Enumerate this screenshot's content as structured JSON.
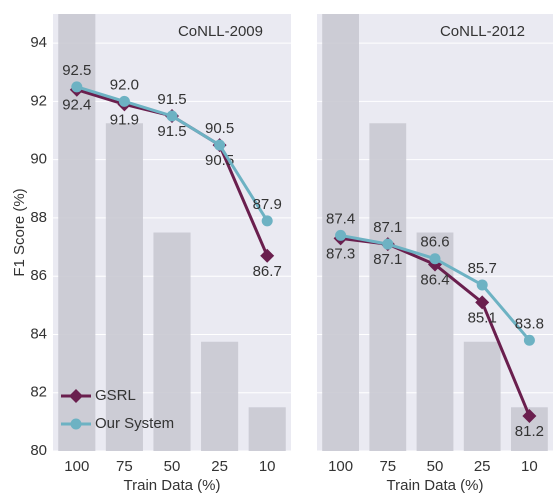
{
  "chart_data": [
    {
      "type": "line",
      "title": "CoNLL-2009",
      "xlabel": "Train Data (%)",
      "ylabel": "F1 Score (%)",
      "categories": [
        "100",
        "75",
        "50",
        "25",
        "10"
      ],
      "bars": {
        "color": "#c9c9d1",
        "values": [
          95,
          91.25,
          87.5,
          83.75,
          81.5
        ]
      },
      "series": [
        {
          "name": "GSRL",
          "color": "#6a1f4e",
          "marker": "diamond",
          "values": [
            92.4,
            91.9,
            91.5,
            90.5,
            86.7
          ],
          "value_labels": [
            "92.4",
            "91.9",
            "91.5",
            "90.5",
            "86.7"
          ]
        },
        {
          "name": "Our System",
          "color": "#6db2c3",
          "marker": "circle",
          "values": [
            92.5,
            92.0,
            91.5,
            90.5,
            87.9
          ],
          "value_labels": [
            "92.5",
            "92.0",
            "91.5",
            "90.5",
            "87.9"
          ]
        }
      ],
      "ylim": [
        80,
        95
      ],
      "yticks": [
        80,
        82,
        84,
        86,
        88,
        90,
        92,
        94
      ],
      "show_ytick_labels": true,
      "grid": true,
      "legend": "lower left"
    },
    {
      "type": "line",
      "title": "CoNLL-2012",
      "xlabel": "Train Data (%)",
      "categories": [
        "100",
        "75",
        "50",
        "25",
        "10"
      ],
      "bars": {
        "color": "#c9c9d1",
        "values": [
          95,
          91.25,
          87.5,
          83.75,
          81.5
        ]
      },
      "series": [
        {
          "name": "GSRL",
          "color": "#6a1f4e",
          "marker": "diamond",
          "values": [
            87.3,
            87.1,
            86.4,
            85.1,
            81.2
          ],
          "value_labels": [
            "87.3",
            "87.1",
            "86.4",
            "85.1",
            "81.2"
          ]
        },
        {
          "name": "Our System",
          "color": "#6db2c3",
          "marker": "circle",
          "values": [
            87.4,
            87.1,
            86.6,
            85.7,
            83.8
          ],
          "value_labels": [
            "87.4",
            "87.1",
            "86.6",
            "85.7",
            "83.8"
          ]
        }
      ],
      "ylim": [
        80,
        95
      ],
      "yticks": [
        80,
        82,
        84,
        86,
        88,
        90,
        92,
        94
      ],
      "show_ytick_labels": false,
      "grid": true
    }
  ]
}
